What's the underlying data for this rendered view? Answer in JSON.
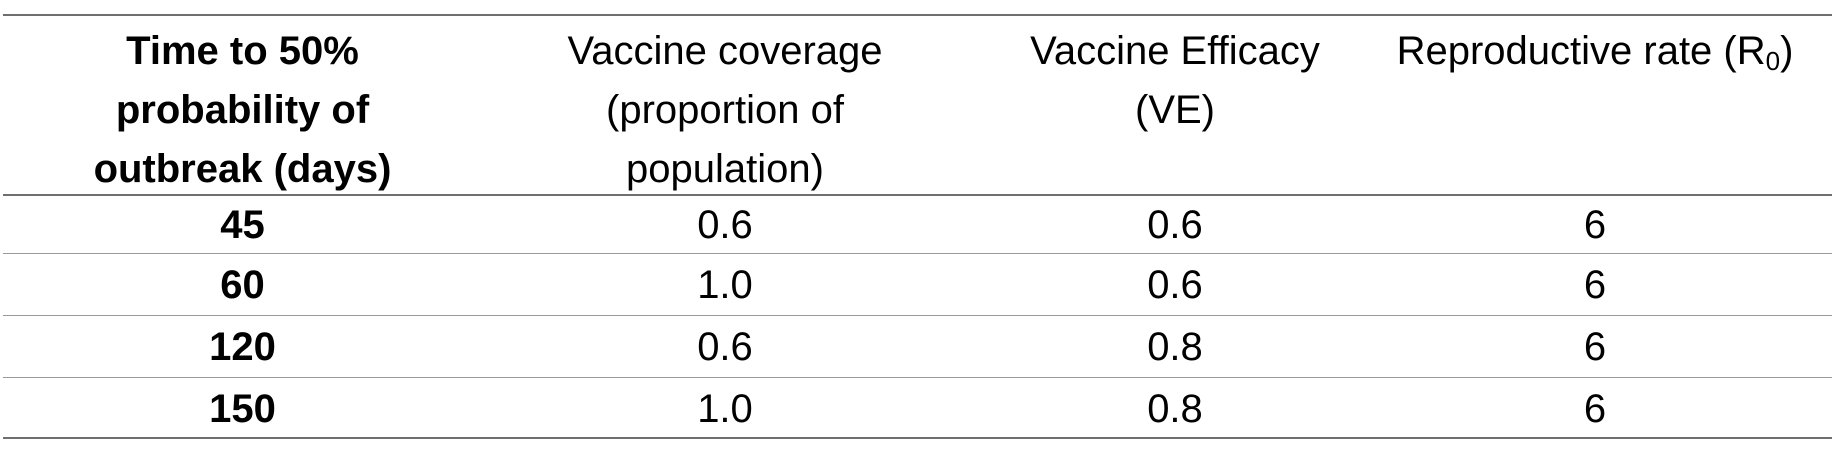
{
  "table": {
    "headers": [
      {
        "lines": [
          "Time to 50%",
          "probability of",
          "outbreak (days)"
        ]
      },
      {
        "lines": [
          "Vaccine coverage",
          "(proportion of",
          "population)"
        ]
      },
      {
        "lines": [
          "Vaccine Efficacy",
          "(VE)"
        ]
      },
      {
        "prefix": "Reproductive rate (R",
        "subscript": "0",
        "suffix": ")"
      }
    ],
    "rows": [
      [
        "45",
        "0.6",
        "0.6",
        "6"
      ],
      [
        "60",
        "1.0",
        "0.6",
        "6"
      ],
      [
        "120",
        "0.6",
        "0.8",
        "6"
      ],
      [
        "150",
        "1.0",
        "0.8",
        "6"
      ]
    ]
  }
}
